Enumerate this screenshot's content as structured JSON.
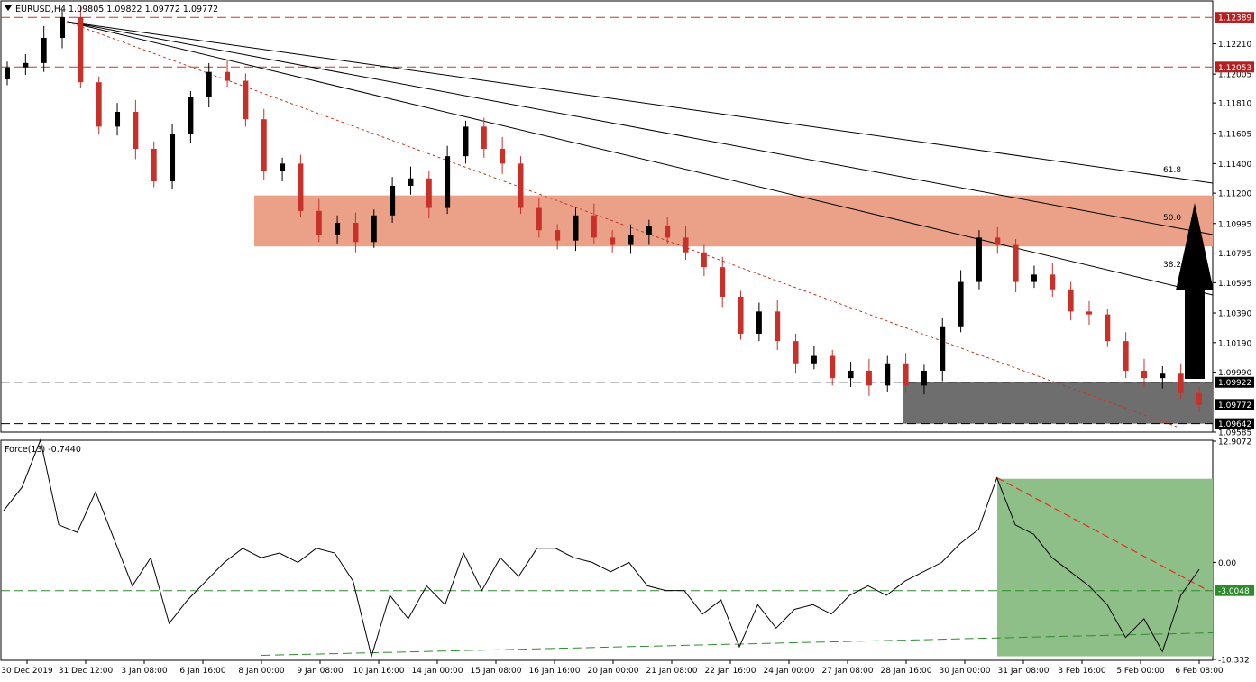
{
  "header": {
    "symbol": "EURUSD,H4",
    "ohlc": "1.09805 1.09822 1.09772 1.09772",
    "indicator": "Force(13) -0.7440"
  },
  "colors": {
    "bull": "#000000",
    "bear": "#c8302a",
    "resistance_zone": "#eba088",
    "support_zone": "#6e6e6e",
    "force_zone": "#8fbf88",
    "red_level": "#c0392b",
    "green_level": "#2e8b2e",
    "price_tag_red": "#b22222",
    "price_tag_black": "#000000"
  },
  "chart_data": [
    {
      "type": "line",
      "panel": "price",
      "symbol": "EURUSD",
      "timeframe": "H4",
      "ylim": [
        1.09585,
        1.125
      ],
      "price_ticks": [
        "1.12210",
        "1.12005",
        "1.11810",
        "1.11605",
        "1.11400",
        "1.11200",
        "1.10995",
        "1.10795",
        "1.10595",
        "1.10390",
        "1.10190",
        "1.09990",
        "1.09585"
      ],
      "time_labels": [
        "30 Dec 2019",
        "31 Dec 12:00",
        "3 Jan 08:00",
        "6 Jan 16:00",
        "8 Jan 00:00",
        "9 Jan 08:00",
        "10 Jan 16:00",
        "14 Jan 00:00",
        "15 Jan 08:00",
        "16 Jan 16:00",
        "20 Jan 00:00",
        "21 Jan 08:00",
        "22 Jan 16:00",
        "24 Jan 00:00",
        "27 Jan 08:00",
        "28 Jan 16:00",
        "30 Jan 00:00",
        "31 Jan 08:00",
        "3 Feb 16:00",
        "5 Feb 00:00",
        "6 Feb 08:00"
      ],
      "close_path": [
        1.1205,
        1.1208,
        1.1225,
        1.1239,
        1.1195,
        1.1165,
        1.1175,
        1.115,
        1.1128,
        1.116,
        1.1185,
        1.1202,
        1.1196,
        1.117,
        1.1135,
        1.114,
        1.1108,
        1.1092,
        1.11,
        1.1087,
        1.1105,
        1.1125,
        1.113,
        1.111,
        1.1145,
        1.1165,
        1.115,
        1.114,
        1.111,
        1.1095,
        1.1088,
        1.1105,
        1.109,
        1.1085,
        1.1092,
        1.1098,
        1.109,
        1.108,
        1.107,
        1.105,
        1.1025,
        1.104,
        1.102,
        1.1005,
        1.101,
        1.0995,
        1.1,
        1.099,
        1.1005,
        1.099,
        1.1,
        1.103,
        1.106,
        1.109,
        1.1085,
        1.106,
        1.1065,
        1.1055,
        1.104,
        1.1038,
        1.102,
        1.1,
        1.0995,
        1.0998,
        1.0985,
        1.0977
      ],
      "price_labels": [
        {
          "text": "1.12389",
          "style": "red"
        },
        {
          "text": "1.12053",
          "style": "red"
        },
        {
          "text": "1.09922",
          "style": "black"
        },
        {
          "text": "1.09772",
          "style": "black"
        },
        {
          "text": "1.09642",
          "style": "black"
        }
      ],
      "levels": [
        {
          "value": 1.12389,
          "style": "red-dashed"
        },
        {
          "value": 1.12053,
          "style": "red-dashed"
        },
        {
          "value": 1.09922,
          "style": "black-dashed"
        },
        {
          "value": 1.09642,
          "style": "black-dashed"
        }
      ],
      "zones": [
        {
          "name": "resistance",
          "from": 1.1084,
          "to": 1.11185
        },
        {
          "name": "support",
          "from": 1.09642,
          "to": 1.09922
        }
      ],
      "fibonacci_labels": [
        "61.8",
        "50.0",
        "38.2"
      ],
      "annotation": "upward arrow"
    },
    {
      "type": "line",
      "panel": "oscillator",
      "name": "Force(13)",
      "ylim": [
        -10.332,
        12.9072
      ],
      "ticks": [
        "12.9072",
        "0.00",
        "-10.332"
      ],
      "current_label": "-3.0048",
      "values": [
        5.5,
        8.0,
        13.0,
        4.0,
        3.2,
        7.5,
        2.5,
        -2.5,
        0.5,
        -6.5,
        -4.0,
        -2.0,
        0.0,
        1.5,
        0.5,
        1.0,
        0.0,
        1.5,
        1.0,
        -2.0,
        -10.0,
        -3.5,
        -6.0,
        -2.5,
        -4.5,
        1.0,
        -3.0,
        0.5,
        -1.5,
        1.5,
        1.5,
        0.5,
        0.0,
        -1.0,
        0.0,
        -2.5,
        -3.0,
        -3.0,
        -5.5,
        -4.0,
        -9.0,
        -4.5,
        -7.0,
        -5.0,
        -4.5,
        -5.5,
        -3.5,
        -2.5,
        -3.5,
        -2.0,
        -1.0,
        0.0,
        2.0,
        3.5,
        9.0,
        4.0,
        3.0,
        0.5,
        -1.0,
        -2.5,
        -4.5,
        -8.0,
        -6.0,
        -9.5,
        -3.5,
        -0.744
      ],
      "signal_level": -3.0048
    }
  ]
}
